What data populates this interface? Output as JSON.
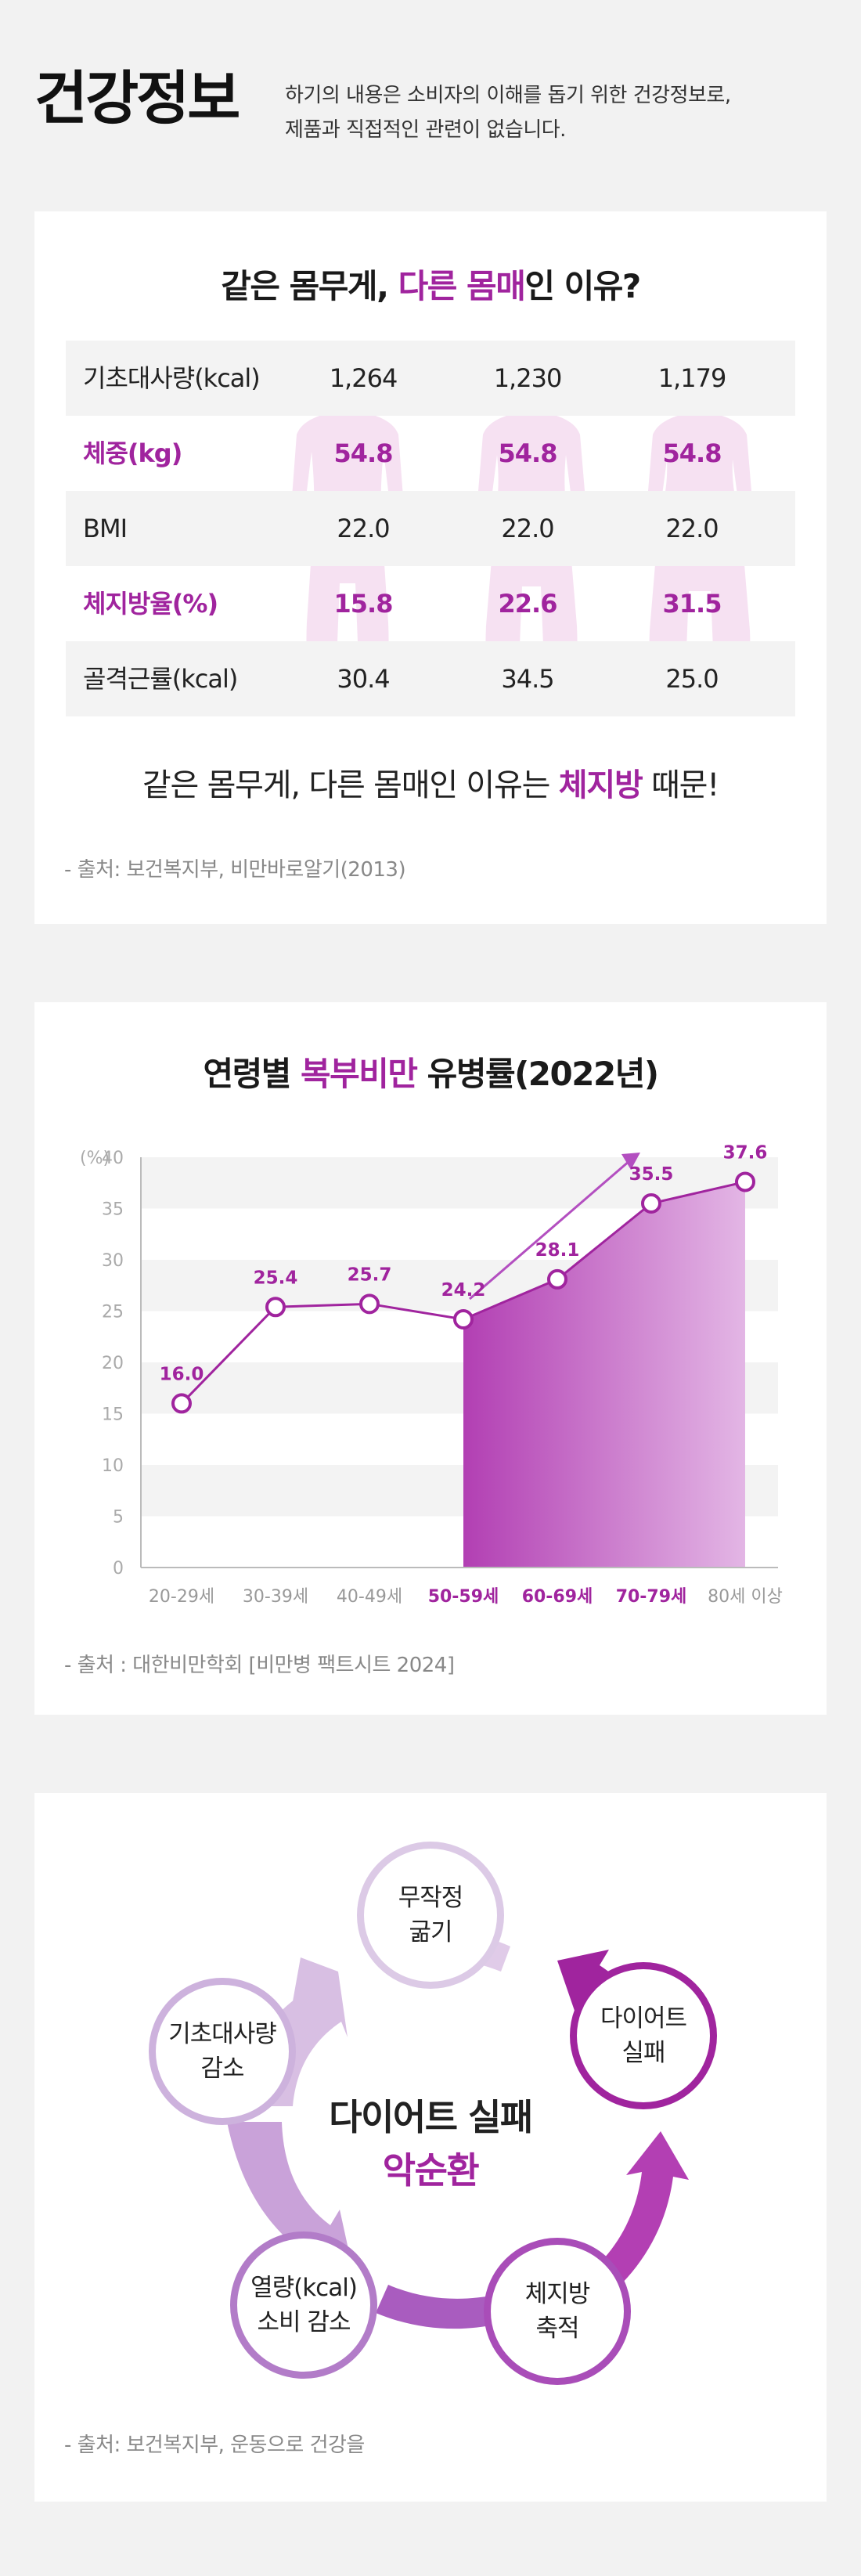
{
  "header": {
    "title": "건강정보",
    "desc_line1": "하기의 내용은 소비자의 이해를 돕기 위한 건강정보로,",
    "desc_line2": "제품과 직접적인 관련이 없습니다."
  },
  "section1": {
    "title_pre": "같은 몸무게, ",
    "title_accent": "다른 몸매",
    "title_post": "인 이유?",
    "rows": [
      {
        "label": "기초대사량(kcal)",
        "values": [
          "1,264",
          "1,230",
          "1,179"
        ],
        "highlight": false
      },
      {
        "label": "체중(kg)",
        "values": [
          "54.8",
          "54.8",
          "54.8"
        ],
        "highlight": true
      },
      {
        "label": "BMI",
        "values": [
          "22.0",
          "22.0",
          "22.0"
        ],
        "highlight": false
      },
      {
        "label": "체지방율(%)",
        "values": [
          "15.8",
          "22.6",
          "31.5"
        ],
        "highlight": true
      },
      {
        "label": "골격근률(kcal)",
        "values": [
          "30.4",
          "34.5",
          "25.0"
        ],
        "highlight": false
      }
    ],
    "conclusion_pre": "같은 몸무게, 다른 몸매인 이유는 ",
    "conclusion_accent": "체지방",
    "conclusion_post": " 때문!",
    "source": "- 출처: 보건복지부, 비만바로알기(2013)"
  },
  "section2": {
    "title_pre": "연령별 ",
    "title_accent": "복부비만",
    "title_post": " 유병률(2022년)",
    "source": "- 출처 : 대한비만학회 [비만병 팩트시트 2024]"
  },
  "chart_data": {
    "type": "line",
    "title": "연령별 복부비만 유병률(2022년)",
    "ylabel": "(%)",
    "ylim": [
      0,
      40
    ],
    "yticks": [
      0,
      5,
      10,
      15,
      20,
      25,
      30,
      35,
      40
    ],
    "categories": [
      "20-29세",
      "30-39세",
      "40-49세",
      "50-59세",
      "60-69세",
      "70-79세",
      "80세 이상"
    ],
    "highlight_categories": [
      "50-59세",
      "60-69세",
      "70-79세"
    ],
    "series": [
      {
        "values": [
          16.0,
          25.4,
          25.7,
          24.2,
          28.1,
          35.5,
          37.6
        ]
      }
    ],
    "data_labels": [
      "16.0",
      "25.4",
      "25.7",
      "24.2",
      "28.1",
      "35.5",
      "37.6"
    ],
    "colors": {
      "accent": "#a0249e",
      "band": "#f3f3f3"
    }
  },
  "section3": {
    "nodes": [
      "무작정\n굶기",
      "다이어트\n실패",
      "체지방\n축적",
      "열량(kcal)\n소비 감소",
      "기초대사량\n감소"
    ],
    "center_line1": "다이어트 실패",
    "center_line2": "악순환",
    "source": "- 출처: 보건복지부, 운동으로 건강을"
  }
}
